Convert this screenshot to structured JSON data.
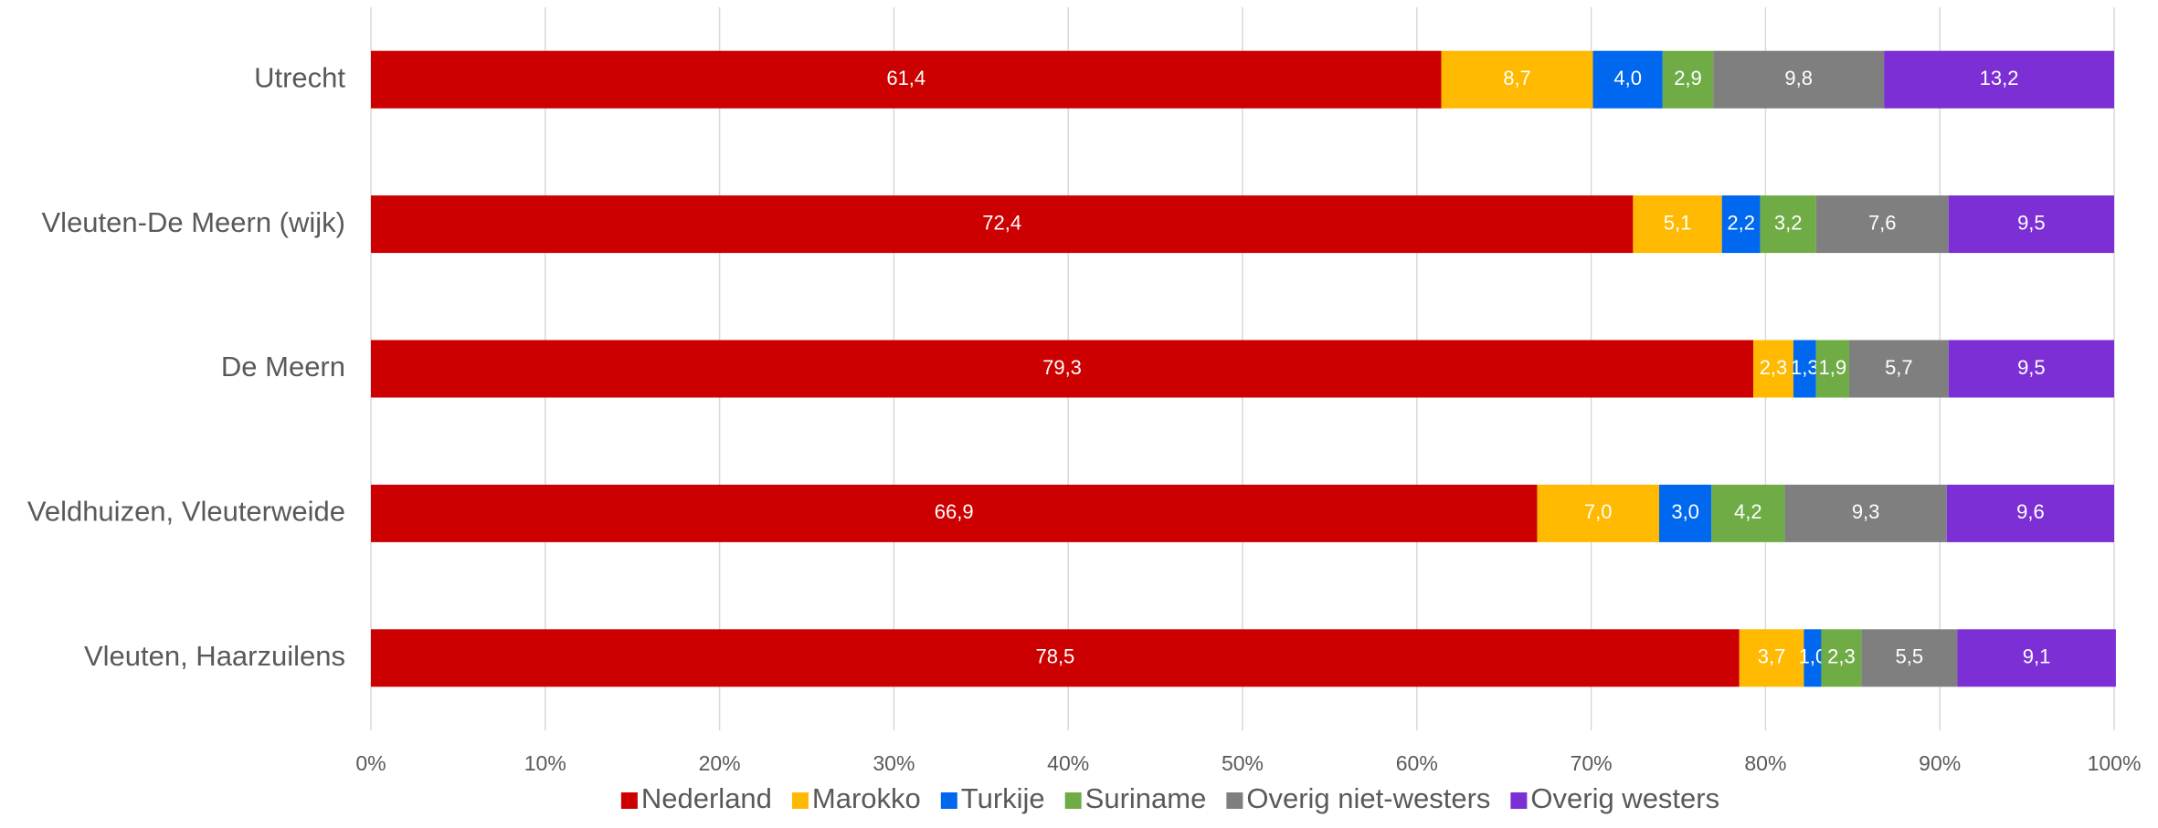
{
  "chart_data": {
    "type": "stacked_bar_horizontal",
    "categories": [
      "Utrecht",
      "Vleuten-De Meern (wijk)",
      "De Meern",
      "Veldhuizen, Vleuterweide",
      "Vleuten, Haarzuilens"
    ],
    "series": [
      {
        "name": "Nederland",
        "color": "#cc0000",
        "values": [
          61.4,
          72.4,
          79.3,
          66.9,
          78.5
        ],
        "value_labels": [
          "61,4",
          "72,4",
          "79,3",
          "66,9",
          "78,5"
        ]
      },
      {
        "name": "Marokko",
        "color": "#ffb900",
        "values": [
          8.7,
          5.1,
          2.3,
          7.0,
          3.7
        ],
        "value_labels": [
          "8,7",
          "5,1",
          "2,3",
          "7,0",
          "3,7"
        ]
      },
      {
        "name": "Turkije",
        "color": "#0068ee",
        "values": [
          4.0,
          2.2,
          1.3,
          3.0,
          1.0
        ],
        "value_labels": [
          "4,0",
          "2,2",
          "1,3",
          "3,0",
          "1,0"
        ]
      },
      {
        "name": "Suriname",
        "color": "#6fac46",
        "values": [
          2.9,
          3.2,
          1.9,
          4.2,
          2.3
        ],
        "value_labels": [
          "2,9",
          "3,2",
          "1,9",
          "4,2",
          "2,3"
        ]
      },
      {
        "name": "Overig niet-westers",
        "color": "#7f7f7f",
        "values": [
          9.8,
          7.6,
          5.7,
          9.3,
          5.5
        ],
        "value_labels": [
          "9,8",
          "7,6",
          "5,7",
          "9,3",
          "5,5"
        ]
      },
      {
        "name": "Overig westers",
        "color": "#7b2fd4",
        "values": [
          13.2,
          9.5,
          9.5,
          9.6,
          9.1
        ],
        "value_labels": [
          "13,2",
          "9,5",
          "9,5",
          "9,6",
          "9,1"
        ]
      }
    ],
    "xlim": [
      0,
      100
    ],
    "xticks": [
      {
        "value": 0,
        "label": "0%"
      },
      {
        "value": 10,
        "label": "10%"
      },
      {
        "value": 20,
        "label": "20%"
      },
      {
        "value": 30,
        "label": "30%"
      },
      {
        "value": 40,
        "label": "40%"
      },
      {
        "value": 50,
        "label": "50%"
      },
      {
        "value": 60,
        "label": "60%"
      },
      {
        "value": 70,
        "label": "70%"
      },
      {
        "value": 80,
        "label": "80%"
      },
      {
        "value": 90,
        "label": "90%"
      },
      {
        "value": 100,
        "label": "100%"
      }
    ],
    "grid": true,
    "legend": "bottom"
  }
}
